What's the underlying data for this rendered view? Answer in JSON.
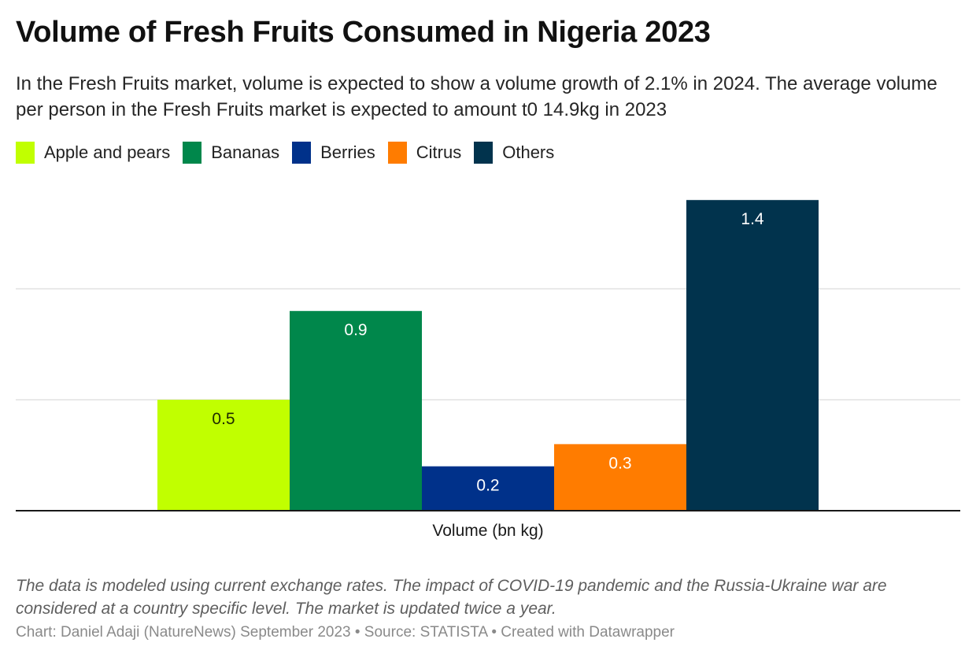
{
  "header": {
    "title": "Volume of Fresh Fruits Consumed in Nigeria 2023",
    "subtitle": "In the Fresh Fruits market, volume is expected to show a volume growth of 2.1% in 2024. The average volume per person in the Fresh Fruits market is expected to amount t0 14.9kg in 2023"
  },
  "legend": {
    "items": [
      {
        "label": "Apple and pears",
        "color": "#c1ff00"
      },
      {
        "label": "Bananas",
        "color": "#00874b"
      },
      {
        "label": "Berries",
        "color": "#00318a"
      },
      {
        "label": "Citrus",
        "color": "#ff7c00"
      },
      {
        "label": "Others",
        "color": "#01334d"
      }
    ]
  },
  "chart_data": {
    "type": "bar",
    "title": "Volume of Fresh Fruits Consumed in Nigeria 2023",
    "categories": [
      "Volume (bn kg)"
    ],
    "series": [
      {
        "name": "Apple and pears",
        "values": [
          0.5
        ],
        "color": "#c1ff00",
        "label_color": "#1f2a00"
      },
      {
        "name": "Bananas",
        "values": [
          0.9
        ],
        "color": "#00874b",
        "label_color": "#ffffff"
      },
      {
        "name": "Berries",
        "values": [
          0.2
        ],
        "color": "#00318a",
        "label_color": "#ffffff"
      },
      {
        "name": "Citrus",
        "values": [
          0.3
        ],
        "color": "#ff7c00",
        "label_color": "#ffffff"
      },
      {
        "name": "Others",
        "values": [
          1.4
        ],
        "color": "#01334d",
        "label_color": "#ffffff"
      }
    ],
    "data_labels": [
      "0.5",
      "0.9",
      "0.2",
      "0.3",
      "1.4"
    ],
    "xlabel": "Volume (bn kg)",
    "ylabel": "",
    "ylim": [
      0,
      1.4
    ],
    "gridlines": [
      0.5,
      1.0
    ],
    "grid": true,
    "y_tick_labels_shown": false,
    "legend_position": "top-left"
  },
  "footer": {
    "notes": "The data is modeled using current exchange rates. The impact of COVID-19 pandemic and the Russia-Ukraine war are considered at a country specific level. The market is updated twice a year.",
    "byline": "Chart: Daniel Adaji (NatureNews) September 2023 • Source: STATISTA • Created with Datawrapper"
  }
}
